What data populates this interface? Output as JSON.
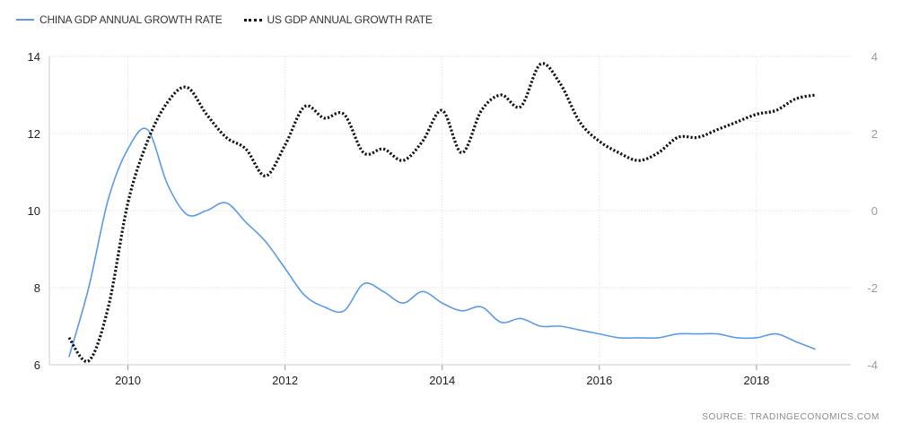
{
  "chart_data": {
    "type": "line",
    "title": "",
    "xlabel": "",
    "ylabel": "",
    "grid": true,
    "legend_position": "top-left",
    "x_ticks": [
      "2010",
      "2012",
      "2014",
      "2016",
      "2018"
    ],
    "xlim": [
      2009.0,
      2019.2
    ],
    "y_left": {
      "lim": [
        6,
        14
      ],
      "ticks": [
        "6",
        "8",
        "10",
        "12",
        "14"
      ]
    },
    "y_right": {
      "lim": [
        -4,
        4
      ],
      "ticks": [
        "-4",
        "-2",
        "0",
        "2",
        "4"
      ]
    },
    "series": [
      {
        "name": "CHINA GDP ANNUAL GROWTH RATE",
        "axis": "left",
        "color": "#5b9be6",
        "style": "solid",
        "x": [
          2009.25,
          2009.5,
          2009.75,
          2010.0,
          2010.25,
          2010.5,
          2010.75,
          2011.0,
          2011.25,
          2011.5,
          2011.75,
          2012.0,
          2012.25,
          2012.5,
          2012.75,
          2013.0,
          2013.25,
          2013.5,
          2013.75,
          2014.0,
          2014.25,
          2014.5,
          2014.75,
          2015.0,
          2015.25,
          2015.5,
          2015.75,
          2016.0,
          2016.25,
          2016.5,
          2016.75,
          2017.0,
          2017.25,
          2017.5,
          2017.75,
          2018.0,
          2018.25,
          2018.5,
          2018.75
        ],
        "values": [
          6.2,
          8.0,
          10.3,
          11.6,
          12.1,
          10.7,
          9.9,
          10.0,
          10.2,
          9.7,
          9.2,
          8.5,
          7.8,
          7.5,
          7.4,
          8.1,
          7.9,
          7.6,
          7.9,
          7.6,
          7.4,
          7.5,
          7.1,
          7.2,
          7.0,
          7.0,
          6.9,
          6.8,
          6.7,
          6.7,
          6.7,
          6.8,
          6.8,
          6.8,
          6.7,
          6.7,
          6.8,
          6.6,
          6.4
        ]
      },
      {
        "name": "US GDP ANNUAL GROWTH RATE",
        "axis": "right",
        "color": "#111111",
        "style": "dotted",
        "x": [
          2009.25,
          2009.5,
          2009.75,
          2010.0,
          2010.25,
          2010.5,
          2010.75,
          2011.0,
          2011.25,
          2011.5,
          2011.75,
          2012.0,
          2012.25,
          2012.5,
          2012.75,
          2013.0,
          2013.25,
          2013.5,
          2013.75,
          2014.0,
          2014.25,
          2014.5,
          2014.75,
          2015.0,
          2015.25,
          2015.5,
          2015.75,
          2016.0,
          2016.25,
          2016.5,
          2016.75,
          2017.0,
          2017.25,
          2017.5,
          2017.75,
          2018.0,
          2018.25,
          2018.5,
          2018.75
        ],
        "values": [
          -3.3,
          -3.9,
          -2.5,
          0.2,
          1.8,
          2.8,
          3.2,
          2.5,
          1.9,
          1.6,
          0.9,
          1.7,
          2.7,
          2.4,
          2.5,
          1.5,
          1.6,
          1.3,
          1.8,
          2.6,
          1.5,
          2.6,
          3.0,
          2.7,
          3.8,
          3.3,
          2.3,
          1.8,
          1.5,
          1.3,
          1.5,
          1.9,
          1.9,
          2.1,
          2.3,
          2.5,
          2.6,
          2.9,
          3.0
        ]
      }
    ]
  },
  "source_text": "SOURCE:  TRADINGECONOMICS.COM"
}
